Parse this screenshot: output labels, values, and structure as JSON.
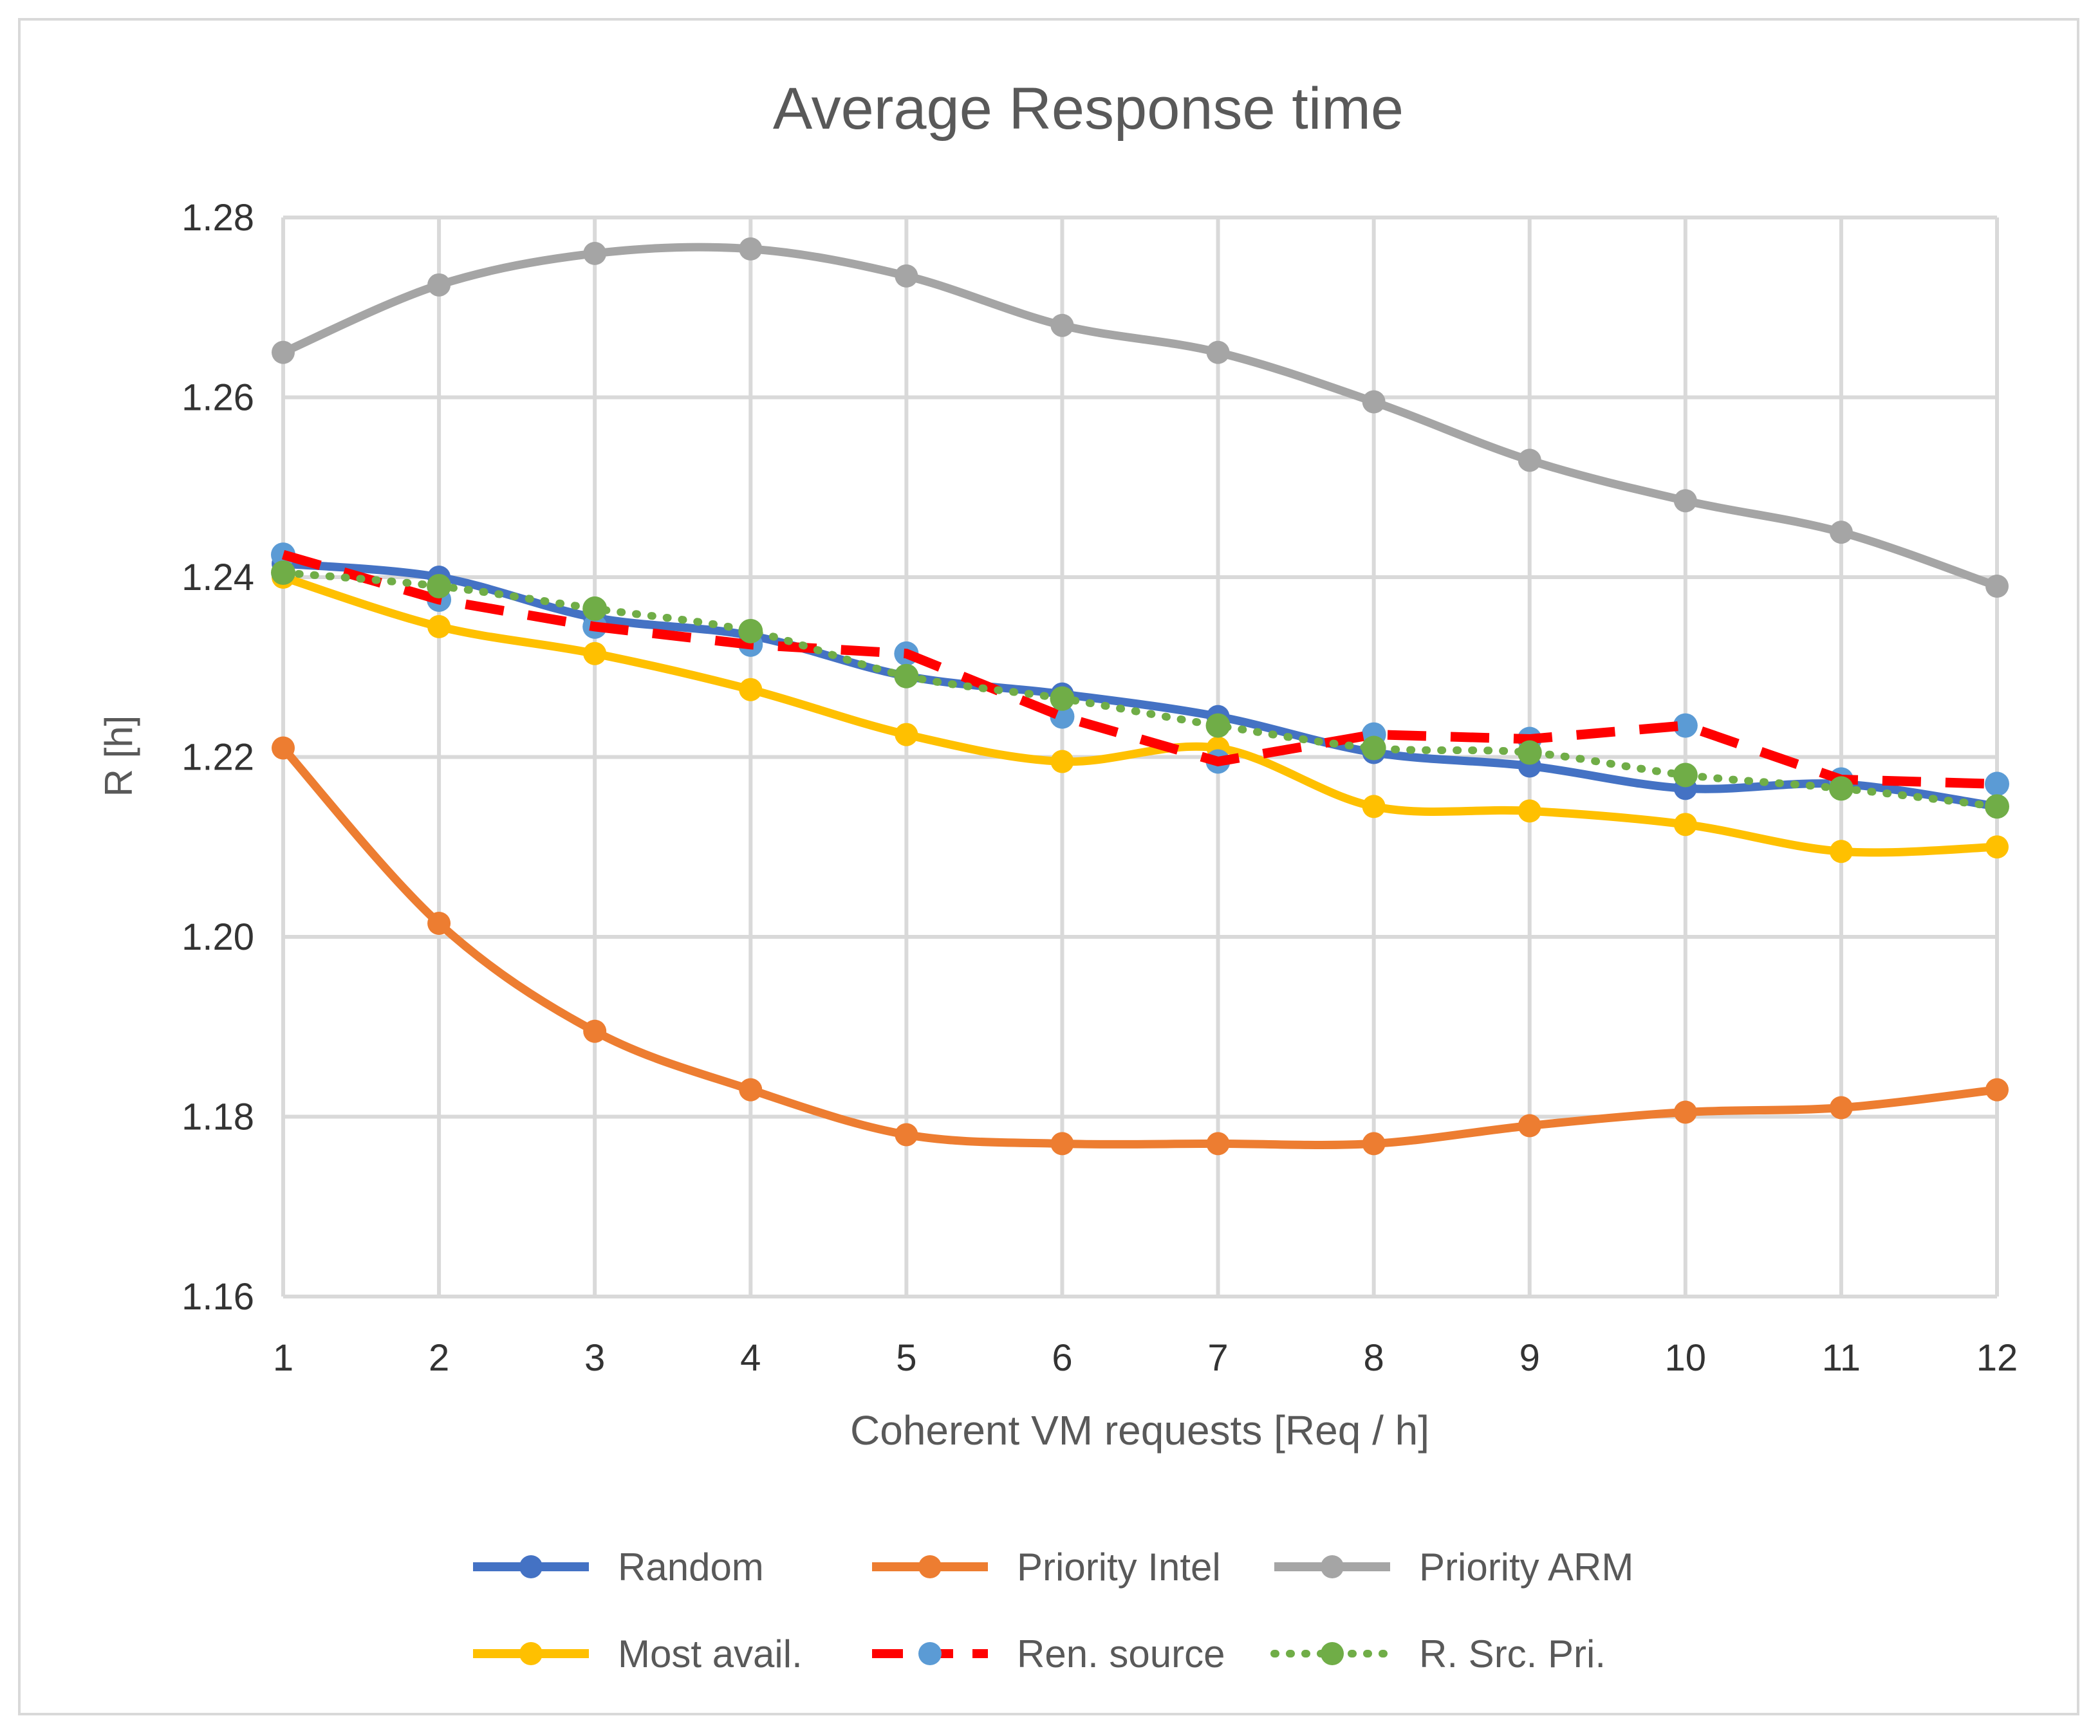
{
  "chart_data": {
    "type": "line",
    "title": "Average Response time",
    "xlabel": "Coherent VM requests [Req / h]",
    "ylabel": "R [h]",
    "x": [
      1,
      2,
      3,
      4,
      5,
      6,
      7,
      8,
      9,
      10,
      11,
      12
    ],
    "xlim": [
      1,
      12
    ],
    "ylim": [
      1.16,
      1.28
    ],
    "yticks": [
      "1.16",
      "1.18",
      "1.20",
      "1.22",
      "1.24",
      "1.26",
      "1.28"
    ],
    "grid": true,
    "legend_position": "bottom",
    "series": [
      {
        "name": "Random",
        "color": "#4472c4",
        "style": "solid-smooth",
        "values": [
          1.2415,
          1.24,
          1.2355,
          1.2335,
          1.229,
          1.227,
          1.2245,
          1.2205,
          1.219,
          1.2165,
          1.217,
          1.2145
        ]
      },
      {
        "name": "Priority Intel",
        "color": "#ed7d31",
        "style": "solid-smooth",
        "values": [
          1.221,
          1.2015,
          1.1895,
          1.183,
          1.178,
          1.177,
          1.177,
          1.177,
          1.179,
          1.1805,
          1.181,
          1.183
        ]
      },
      {
        "name": "Priority ARM",
        "color": "#a5a5a5",
        "style": "solid-smooth",
        "values": [
          1.265,
          1.2725,
          1.276,
          1.2765,
          1.2735,
          1.268,
          1.265,
          1.2595,
          1.253,
          1.2485,
          1.245,
          1.239
        ]
      },
      {
        "name": "Most avail.",
        "color": "#ffc000",
        "style": "solid-smooth",
        "values": [
          1.24,
          1.2345,
          1.2315,
          1.2275,
          1.2225,
          1.2195,
          1.221,
          1.2145,
          1.214,
          1.2125,
          1.2095,
          1.21
        ]
      },
      {
        "name": "Ren. source",
        "color": "#ff0000",
        "marker_color": "#5b9bd5",
        "style": "dashed",
        "values": [
          1.2425,
          1.2375,
          1.2345,
          1.2325,
          1.2315,
          1.2245,
          1.2195,
          1.2225,
          1.222,
          1.2235,
          1.2175,
          1.217
        ]
      },
      {
        "name": "R. Src. Pri.",
        "color": "#70ad47",
        "style": "dotted",
        "values": [
          1.2405,
          1.239,
          1.2365,
          1.234,
          1.229,
          1.2265,
          1.2235,
          1.221,
          1.2205,
          1.218,
          1.2165,
          1.2145
        ]
      }
    ]
  }
}
